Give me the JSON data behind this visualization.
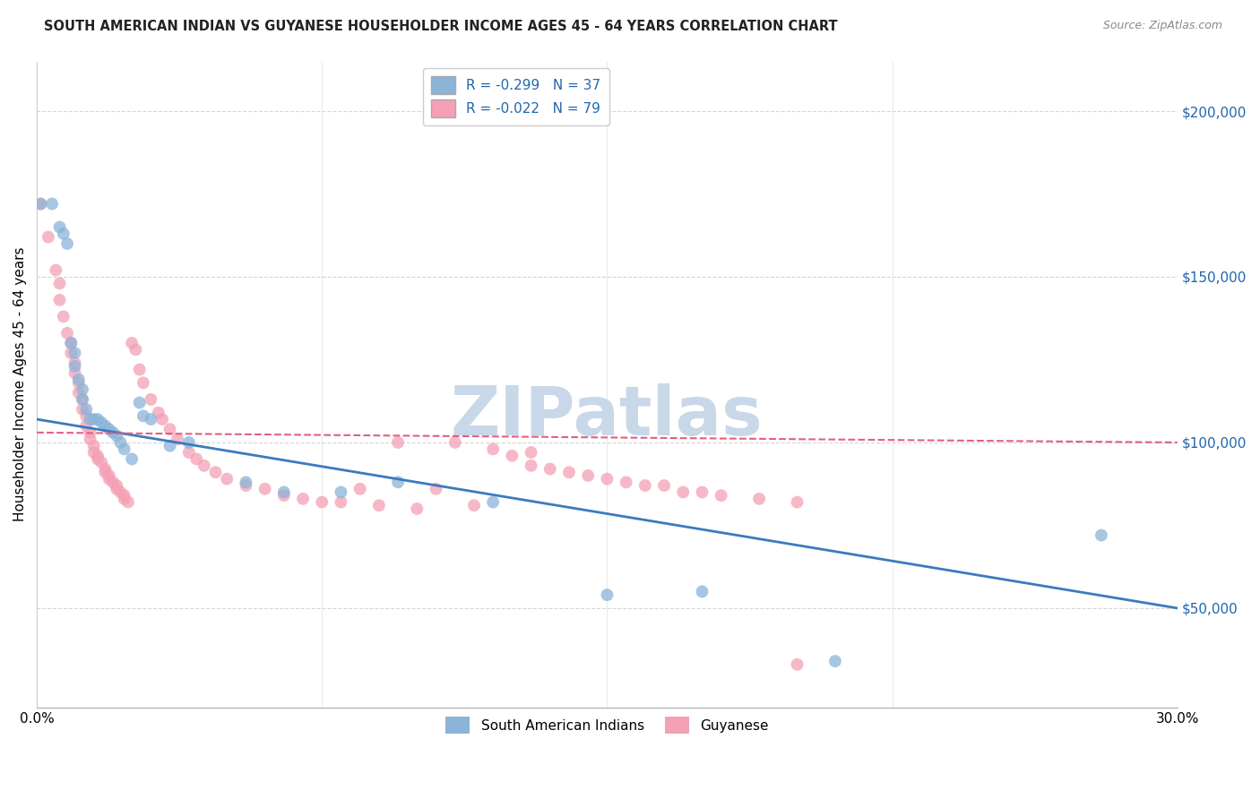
{
  "title": "SOUTH AMERICAN INDIAN VS GUYANESE HOUSEHOLDER INCOME AGES 45 - 64 YEARS CORRELATION CHART",
  "source": "Source: ZipAtlas.com",
  "ylabel": "Householder Income Ages 45 - 64 years",
  "yticks": [
    50000,
    100000,
    150000,
    200000
  ],
  "ytick_labels": [
    "$50,000",
    "$100,000",
    "$150,000",
    "$200,000"
  ],
  "xlim": [
    0.0,
    0.3
  ],
  "ylim": [
    20000,
    215000
  ],
  "xticks": [
    0.0,
    0.3
  ],
  "xtick_labels": [
    "0.0%",
    "30.0%"
  ],
  "legend_entry_blue": "R = -0.299   N = 37",
  "legend_entry_pink": "R = -0.022   N = 79",
  "legend_label_blue": "South American Indians",
  "legend_label_pink": "Guyanese",
  "blue_line_x": [
    0.0,
    0.3
  ],
  "blue_line_y": [
    107000,
    50000
  ],
  "pink_line_x": [
    0.0,
    0.3
  ],
  "pink_line_y": [
    103000,
    100000
  ],
  "blue_color": "#8ab4d8",
  "pink_color": "#f4a0b5",
  "blue_line_color": "#3a7bbf",
  "pink_line_color": "#e06080",
  "grid_color": "#cccccc",
  "watermark": "ZIPatlas",
  "watermark_color": "#c8d8e8",
  "scatter_size": 100,
  "blue_scatter_x": [
    0.001,
    0.004,
    0.006,
    0.007,
    0.008,
    0.009,
    0.01,
    0.01,
    0.011,
    0.012,
    0.012,
    0.013,
    0.014,
    0.015,
    0.016,
    0.017,
    0.018,
    0.019,
    0.02,
    0.021,
    0.022,
    0.023,
    0.025,
    0.027,
    0.028,
    0.03,
    0.035,
    0.04,
    0.055,
    0.065,
    0.08,
    0.095,
    0.12,
    0.15,
    0.175,
    0.21,
    0.28
  ],
  "blue_scatter_y": [
    172000,
    172000,
    165000,
    163000,
    160000,
    130000,
    127000,
    123000,
    119000,
    116000,
    113000,
    110000,
    107000,
    107000,
    107000,
    106000,
    105000,
    104000,
    103000,
    102000,
    100000,
    98000,
    95000,
    112000,
    108000,
    107000,
    99000,
    100000,
    88000,
    85000,
    85000,
    88000,
    82000,
    54000,
    55000,
    34000,
    72000
  ],
  "pink_scatter_x": [
    0.001,
    0.003,
    0.005,
    0.006,
    0.006,
    0.007,
    0.008,
    0.009,
    0.009,
    0.01,
    0.01,
    0.011,
    0.011,
    0.012,
    0.012,
    0.013,
    0.013,
    0.014,
    0.014,
    0.015,
    0.015,
    0.016,
    0.016,
    0.017,
    0.018,
    0.018,
    0.019,
    0.019,
    0.02,
    0.021,
    0.021,
    0.022,
    0.023,
    0.023,
    0.024,
    0.025,
    0.026,
    0.027,
    0.028,
    0.03,
    0.032,
    0.033,
    0.035,
    0.037,
    0.04,
    0.042,
    0.044,
    0.047,
    0.05,
    0.055,
    0.06,
    0.065,
    0.07,
    0.08,
    0.09,
    0.1,
    0.11,
    0.12,
    0.13,
    0.14,
    0.15,
    0.16,
    0.17,
    0.18,
    0.19,
    0.2,
    0.13,
    0.105,
    0.115,
    0.095,
    0.085,
    0.075,
    0.155,
    0.145,
    0.135,
    0.125,
    0.165,
    0.175,
    0.2
  ],
  "pink_scatter_y": [
    172000,
    162000,
    152000,
    148000,
    143000,
    138000,
    133000,
    130000,
    127000,
    124000,
    121000,
    118000,
    115000,
    113000,
    110000,
    108000,
    105000,
    103000,
    101000,
    99000,
    97000,
    96000,
    95000,
    94000,
    92000,
    91000,
    90000,
    89000,
    88000,
    87000,
    86000,
    85000,
    84000,
    83000,
    82000,
    130000,
    128000,
    122000,
    118000,
    113000,
    109000,
    107000,
    104000,
    101000,
    97000,
    95000,
    93000,
    91000,
    89000,
    87000,
    86000,
    84000,
    83000,
    82000,
    81000,
    80000,
    100000,
    98000,
    93000,
    91000,
    89000,
    87000,
    85000,
    84000,
    83000,
    82000,
    97000,
    86000,
    81000,
    100000,
    86000,
    82000,
    88000,
    90000,
    92000,
    96000,
    87000,
    85000,
    33000
  ]
}
